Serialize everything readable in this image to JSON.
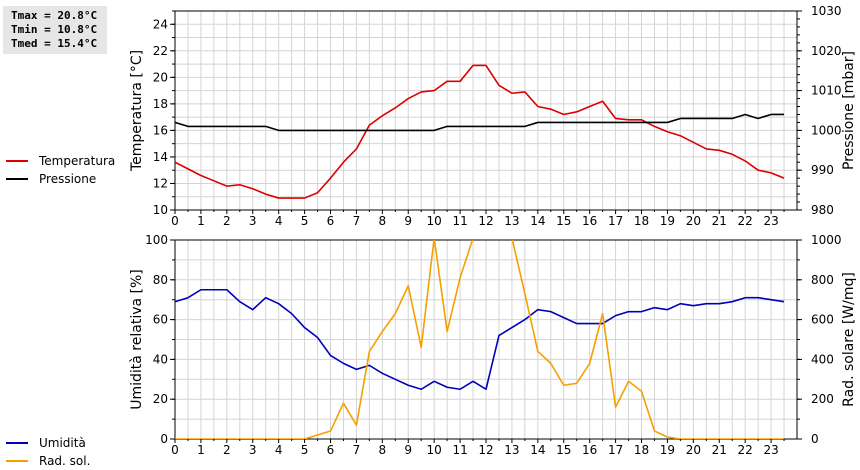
{
  "stats": {
    "tmax": "Tmax = 20.8°C",
    "tmin": "Tmin = 10.8°C",
    "tmed": "Tmed = 15.4°C"
  },
  "colors": {
    "temperatura": "#dd0000",
    "pressione": "#000000",
    "umidita": "#0000bb",
    "rad_sol": "#f5a000",
    "grid": "#d4d4d4"
  },
  "chart_data": [
    {
      "type": "line",
      "grid": true,
      "legend_position": "left",
      "xlim": [
        0,
        24
      ],
      "x_ticks": [
        "0",
        "1",
        "2",
        "3",
        "4",
        "5",
        "6",
        "7",
        "8",
        "9",
        "10",
        "11",
        "12",
        "13",
        "14",
        "15",
        "16",
        "17",
        "18",
        "19",
        "20",
        "21",
        "22",
        "23"
      ],
      "ylabel": "Temperatura [°C]",
      "ylim": [
        10,
        25
      ],
      "y_ticks": [
        "10",
        "12",
        "14",
        "16",
        "18",
        "20",
        "22",
        "24"
      ],
      "ylabel_right": "Pressione [mbar]",
      "ylim_right": [
        980,
        1030
      ],
      "y_ticks_right": [
        "980",
        "990",
        "1000",
        "1010",
        "1020",
        "1030"
      ],
      "x": [
        0,
        0.5,
        1,
        1.5,
        2,
        2.5,
        3,
        3.5,
        4,
        4.5,
        5,
        5.5,
        6,
        6.5,
        7,
        7.5,
        8,
        8.5,
        9,
        9.5,
        10,
        10.5,
        11,
        11.5,
        12,
        12.5,
        13,
        13.5,
        14,
        14.5,
        15,
        15.5,
        16,
        16.5,
        17,
        17.5,
        18,
        18.5,
        19,
        19.5,
        20,
        20.5,
        21,
        21.5,
        22,
        22.5,
        23,
        23.5
      ],
      "series": [
        {
          "name": "Temperatura",
          "axis": "left",
          "values": [
            13.6,
            13.1,
            12.6,
            12.2,
            11.8,
            11.9,
            11.6,
            11.2,
            10.9,
            10.9,
            10.9,
            11.3,
            12.4,
            13.6,
            14.6,
            16.4,
            17.1,
            17.7,
            18.4,
            18.9,
            19.0,
            19.7,
            19.7,
            20.9,
            20.9,
            19.4,
            18.8,
            18.9,
            17.8,
            17.6,
            17.2,
            17.4,
            17.8,
            18.2,
            16.9,
            16.8,
            16.8,
            16.3,
            15.9,
            15.6,
            15.1,
            14.6,
            14.5,
            14.2,
            13.7,
            13.0,
            12.8,
            12.4
          ]
        },
        {
          "name": "Pressione",
          "axis": "right",
          "values": [
            1002,
            1001,
            1001,
            1001,
            1001,
            1001,
            1001,
            1001,
            1000,
            1000,
            1000,
            1000,
            1000,
            1000,
            1000,
            1000,
            1000,
            1000,
            1000,
            1000,
            1000,
            1001,
            1001,
            1001,
            1001,
            1001,
            1001,
            1001,
            1002,
            1002,
            1002,
            1002,
            1002,
            1002,
            1002,
            1002,
            1002,
            1002,
            1002,
            1003,
            1003,
            1003,
            1003,
            1003,
            1004,
            1003,
            1004,
            1004
          ]
        }
      ]
    },
    {
      "type": "line",
      "grid": true,
      "legend_position": "left",
      "xlim": [
        0,
        24
      ],
      "x_ticks": [
        "0",
        "1",
        "2",
        "3",
        "4",
        "5",
        "6",
        "7",
        "8",
        "9",
        "10",
        "11",
        "12",
        "13",
        "14",
        "15",
        "16",
        "17",
        "18",
        "19",
        "20",
        "21",
        "22",
        "23"
      ],
      "ylabel": "Umidità relativa [%]",
      "ylim": [
        0,
        100
      ],
      "y_ticks": [
        "0",
        "20",
        "40",
        "60",
        "80",
        "100"
      ],
      "ylabel_right": "Rad. solare [W/mq]",
      "ylim_right": [
        0,
        1000
      ],
      "y_ticks_right": [
        "0",
        "200",
        "400",
        "600",
        "800",
        "1000"
      ],
      "x": [
        0,
        0.5,
        1,
        1.5,
        2,
        2.5,
        3,
        3.5,
        4,
        4.5,
        5,
        5.5,
        6,
        6.5,
        7,
        7.5,
        8,
        8.5,
        9,
        9.5,
        10,
        10.5,
        11,
        11.5,
        12,
        12.5,
        13,
        13.5,
        14,
        14.5,
        15,
        15.5,
        16,
        16.5,
        17,
        17.5,
        18,
        18.5,
        19,
        19.5,
        20,
        20.5,
        21,
        21.5,
        22,
        22.5,
        23,
        23.5
      ],
      "series": [
        {
          "name": "Umidità",
          "axis": "left",
          "values": [
            69,
            71,
            75,
            75,
            75,
            69,
            65,
            71,
            68,
            63,
            56,
            51,
            42,
            38,
            35,
            37,
            33,
            30,
            27,
            25,
            29,
            26,
            25,
            29,
            25,
            52,
            56,
            60,
            65,
            64,
            61,
            58,
            58,
            58,
            62,
            64,
            64,
            66,
            65,
            68,
            67,
            68,
            68,
            69,
            71,
            71,
            70,
            69
          ]
        },
        {
          "name": "Rad. sol.",
          "axis": "right",
          "values": [
            0,
            0,
            0,
            0,
            0,
            0,
            0,
            0,
            0,
            0,
            0,
            20,
            40,
            180,
            70,
            440,
            540,
            630,
            770,
            460,
            1010,
            540,
            810,
            1010,
            1010,
            1010,
            1010,
            730,
            440,
            380,
            270,
            280,
            380,
            630,
            160,
            290,
            240,
            40,
            10,
            0,
            0,
            0,
            0,
            0,
            0,
            0,
            0,
            0
          ]
        }
      ]
    }
  ]
}
